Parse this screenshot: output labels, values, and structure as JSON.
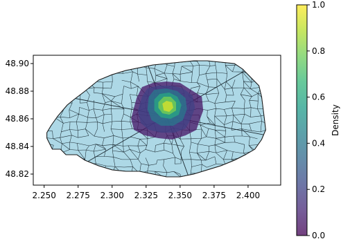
{
  "chart_data": {
    "type": "heatmap",
    "title": "",
    "xlabel": "",
    "ylabel": "",
    "xlim": [
      2.242,
      2.424
    ],
    "ylim": [
      48.812,
      48.906
    ],
    "x_ticks": [
      2.25,
      2.275,
      2.3,
      2.325,
      2.35,
      2.375,
      2.4
    ],
    "x_tick_labels": [
      "2.250",
      "2.275",
      "2.300",
      "2.325",
      "2.350",
      "2.375",
      "2.400"
    ],
    "y_ticks": [
      48.82,
      48.84,
      48.86,
      48.88,
      48.9
    ],
    "y_tick_labels": [
      "48.82",
      "48.84",
      "48.86",
      "48.88",
      "48.90"
    ],
    "grid": false,
    "base_map": {
      "fill_color": "#add8e6",
      "edge_color": "#1a1a1a",
      "outline": [
        [
          2.252,
          48.846
        ],
        [
          2.256,
          48.838
        ],
        [
          2.262,
          48.838
        ],
        [
          2.266,
          48.834
        ],
        [
          2.274,
          48.834
        ],
        [
          2.28,
          48.83
        ],
        [
          2.29,
          48.826
        ],
        [
          2.3,
          48.823
        ],
        [
          2.31,
          48.822
        ],
        [
          2.32,
          48.822
        ],
        [
          2.33,
          48.82
        ],
        [
          2.34,
          48.818
        ],
        [
          2.35,
          48.818
        ],
        [
          2.36,
          48.82
        ],
        [
          2.37,
          48.823
        ],
        [
          2.38,
          48.826
        ],
        [
          2.39,
          48.83
        ],
        [
          2.398,
          48.834
        ],
        [
          2.405,
          48.838
        ],
        [
          2.41,
          48.845
        ],
        [
          2.413,
          48.852
        ],
        [
          2.412,
          48.86
        ],
        [
          2.411,
          48.868
        ],
        [
          2.41,
          48.876
        ],
        [
          2.408,
          48.884
        ],
        [
          2.402,
          48.89
        ],
        [
          2.396,
          48.896
        ],
        [
          2.39,
          48.9
        ],
        [
          2.38,
          48.901
        ],
        [
          2.37,
          48.902
        ],
        [
          2.36,
          48.902
        ],
        [
          2.35,
          48.901
        ],
        [
          2.34,
          48.9
        ],
        [
          2.33,
          48.899
        ],
        [
          2.32,
          48.897
        ],
        [
          2.31,
          48.895
        ],
        [
          2.3,
          48.892
        ],
        [
          2.29,
          48.888
        ],
        [
          2.28,
          48.88
        ],
        [
          2.272,
          48.874
        ],
        [
          2.267,
          48.87
        ],
        [
          2.26,
          48.862
        ],
        [
          2.255,
          48.855
        ],
        [
          2.252,
          48.85
        ]
      ]
    },
    "density": {
      "peak": [
        2.34,
        48.868
      ],
      "series": [
        {
          "level": 0.05,
          "polygon": [
            [
              2.318,
              48.875
            ],
            [
              2.322,
              48.883
            ],
            [
              2.33,
              48.886
            ],
            [
              2.34,
              48.887
            ],
            [
              2.35,
              48.886
            ],
            [
              2.358,
              48.881
            ],
            [
              2.366,
              48.876
            ],
            [
              2.367,
              48.866
            ],
            [
              2.364,
              48.858
            ],
            [
              2.362,
              48.852
            ],
            [
              2.354,
              48.848
            ],
            [
              2.344,
              48.845
            ],
            [
              2.334,
              48.846
            ],
            [
              2.324,
              48.848
            ],
            [
              2.316,
              48.852
            ],
            [
              2.314,
              48.86
            ],
            [
              2.316,
              48.868
            ]
          ]
        },
        {
          "level": 0.2,
          "polygon": [
            [
              2.322,
              48.876
            ],
            [
              2.326,
              48.882
            ],
            [
              2.334,
              48.884
            ],
            [
              2.344,
              48.884
            ],
            [
              2.352,
              48.882
            ],
            [
              2.359,
              48.877
            ],
            [
              2.361,
              48.868
            ],
            [
              2.358,
              48.86
            ],
            [
              2.354,
              48.853
            ],
            [
              2.346,
              48.85
            ],
            [
              2.336,
              48.85
            ],
            [
              2.327,
              48.852
            ],
            [
              2.321,
              48.857
            ],
            [
              2.319,
              48.866
            ]
          ]
        },
        {
          "level": 0.4,
          "polygon": [
            [
              2.327,
              48.876
            ],
            [
              2.331,
              48.881
            ],
            [
              2.34,
              48.882
            ],
            [
              2.348,
              48.88
            ],
            [
              2.354,
              48.875
            ],
            [
              2.355,
              48.867
            ],
            [
              2.352,
              48.859
            ],
            [
              2.345,
              48.855
            ],
            [
              2.336,
              48.855
            ],
            [
              2.329,
              48.859
            ],
            [
              2.326,
              48.867
            ]
          ]
        },
        {
          "level": 0.6,
          "polygon": [
            [
              2.331,
              48.874
            ],
            [
              2.335,
              48.878
            ],
            [
              2.342,
              48.879
            ],
            [
              2.348,
              48.876
            ],
            [
              2.351,
              48.87
            ],
            [
              2.349,
              48.863
            ],
            [
              2.343,
              48.86
            ],
            [
              2.336,
              48.861
            ],
            [
              2.331,
              48.866
            ]
          ]
        },
        {
          "level": 0.8,
          "polygon": [
            [
              2.334,
              48.872
            ],
            [
              2.338,
              48.876
            ],
            [
              2.343,
              48.876
            ],
            [
              2.347,
              48.872
            ],
            [
              2.347,
              48.866
            ],
            [
              2.342,
              48.863
            ],
            [
              2.337,
              48.864
            ],
            [
              2.334,
              48.868
            ]
          ]
        },
        {
          "level": 0.95,
          "polygon": [
            [
              2.337,
              48.871
            ],
            [
              2.34,
              48.873
            ],
            [
              2.344,
              48.872
            ],
            [
              2.345,
              48.868
            ],
            [
              2.342,
              48.865
            ],
            [
              2.338,
              48.866
            ]
          ]
        }
      ]
    },
    "colorbar": {
      "label": "Density",
      "colormap": "viridis",
      "range": [
        0.0,
        1.0
      ],
      "ticks": [
        0.0,
        0.2,
        0.4,
        0.6,
        0.8,
        1.0
      ],
      "tick_labels": [
        "0.0",
        "0.2",
        "0.4",
        "0.6",
        "0.8",
        "1.0"
      ],
      "stops": [
        "#440154",
        "#482878",
        "#3e4989",
        "#31688e",
        "#26828e",
        "#1f9e89",
        "#35b779",
        "#6ece58",
        "#b5de2b",
        "#fde725"
      ],
      "alpha": 0.75
    }
  }
}
